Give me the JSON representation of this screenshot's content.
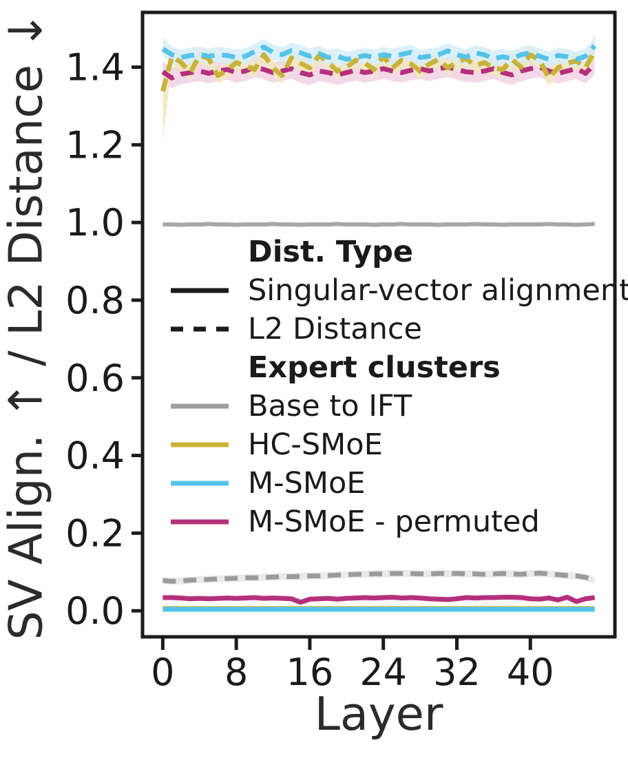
{
  "figure": {
    "background": "#ffffff",
    "frame_color": "#1c1c1c",
    "text_color": "#1a1a1a"
  },
  "axes": {
    "x_label": "Layer",
    "y_label": "SV Align. ↑ / L2 Distance ↓",
    "x_tick_labels": [
      "0",
      "8",
      "16",
      "24",
      "32",
      "40"
    ],
    "y_tick_labels": [
      "0.0",
      "0.2",
      "0.4",
      "0.6",
      "0.8",
      "1.0",
      "1.2",
      "1.4"
    ]
  },
  "legend": {
    "sections": [
      {
        "title": "Dist. Type",
        "items": [
          {
            "label": "Singular-vector alignment",
            "color": "#1a1a1a",
            "dash": null
          },
          {
            "label": "L2 Distance",
            "color": "#1a1a1a",
            "dash": "18 15"
          }
        ]
      },
      {
        "title": "Expert clusters",
        "items": [
          {
            "label": "Base to IFT",
            "color": "#9e9e9e",
            "dash": null
          },
          {
            "label": "HC-SMoE",
            "color": "#c9b23c",
            "dash": null
          },
          {
            "label": "M-SMoE",
            "color": "#55c3e8",
            "dash": null
          },
          {
            "label": "M-SMoE - permuted",
            "color": "#b5307c",
            "dash": null
          }
        ]
      }
    ]
  },
  "chart_data": {
    "type": "line",
    "title": "",
    "xlabel": "Layer",
    "ylabel": "SV Align. ↑ / L2 Distance ↓",
    "xlim": [
      -2.2,
      49.2
    ],
    "ylim": [
      -0.067,
      1.541
    ],
    "x_ticks": [
      0,
      8,
      16,
      24,
      32,
      40
    ],
    "y_ticks": [
      0.0,
      0.2,
      0.4,
      0.6,
      0.8,
      1.0,
      1.2,
      1.4
    ],
    "grid": false,
    "legend_position": "center-left inside plot",
    "x": [
      0,
      1,
      2,
      3,
      4,
      5,
      6,
      7,
      8,
      9,
      10,
      11,
      12,
      13,
      14,
      15,
      16,
      17,
      18,
      19,
      20,
      21,
      22,
      23,
      24,
      25,
      26,
      27,
      28,
      29,
      30,
      31,
      32,
      33,
      34,
      35,
      36,
      37,
      38,
      39,
      40,
      41,
      42,
      43,
      44,
      45,
      46,
      47
    ],
    "series": [
      {
        "name": "Base to IFT — Singular-vector alignment",
        "cluster": "Base to IFT",
        "dist_type": "Singular-vector alignment",
        "style": "solid",
        "color": "#a7a7a7",
        "width": 6,
        "band": 0,
        "values": [
          0.995,
          0.995,
          0.994,
          0.995,
          0.995,
          0.996,
          0.995,
          0.995,
          0.994,
          0.995,
          0.995,
          0.995,
          0.996,
          0.995,
          0.995,
          0.994,
          0.995,
          0.995,
          0.995,
          0.996,
          0.995,
          0.995,
          0.995,
          0.994,
          0.995,
          0.995,
          0.996,
          0.995,
          0.995,
          0.995,
          0.994,
          0.995,
          0.995,
          0.995,
          0.996,
          0.995,
          0.995,
          0.994,
          0.995,
          0.995,
          0.995,
          0.995,
          0.996,
          0.995,
          0.995,
          0.994,
          0.995,
          0.996
        ]
      },
      {
        "name": "Base to IFT — L2 Distance",
        "cluster": "Base to IFT",
        "dist_type": "L2 Distance",
        "style": "dashed",
        "color": "#9b9b9b",
        "width": 7,
        "band": 0.009,
        "band_color": "#e6e6e6",
        "values": [
          0.078,
          0.076,
          0.077,
          0.079,
          0.08,
          0.081,
          0.082,
          0.083,
          0.084,
          0.085,
          0.085,
          0.086,
          0.087,
          0.088,
          0.088,
          0.089,
          0.09,
          0.09,
          0.091,
          0.092,
          0.093,
          0.094,
          0.094,
          0.095,
          0.095,
          0.096,
          0.096,
          0.096,
          0.095,
          0.095,
          0.096,
          0.096,
          0.096,
          0.095,
          0.095,
          0.094,
          0.095,
          0.096,
          0.095,
          0.094,
          0.096,
          0.097,
          0.095,
          0.093,
          0.091,
          0.09,
          0.086,
          0.079
        ]
      },
      {
        "name": "HC-SMoE — Singular-vector alignment",
        "cluster": "HC-SMoE",
        "dist_type": "Singular-vector alignment",
        "style": "solid",
        "color": "#c9b23c",
        "width": 7,
        "band": 0,
        "values": [
          0.006,
          0.006,
          0.006,
          0.006,
          0.006,
          0.006,
          0.006,
          0.006,
          0.006,
          0.006,
          0.006,
          0.006,
          0.006,
          0.006,
          0.006,
          0.006,
          0.006,
          0.006,
          0.006,
          0.006,
          0.006,
          0.006,
          0.006,
          0.006,
          0.006,
          0.006,
          0.006,
          0.006,
          0.006,
          0.006,
          0.006,
          0.006,
          0.006,
          0.006,
          0.006,
          0.006,
          0.006,
          0.006,
          0.006,
          0.006,
          0.006,
          0.006,
          0.006,
          0.006,
          0.006,
          0.006,
          0.006,
          0.006
        ]
      },
      {
        "name": "M-SMoE — Singular-vector alignment",
        "cluster": "M-SMoE",
        "dist_type": "Singular-vector alignment",
        "style": "solid",
        "color": "#55c3e8",
        "width": 7,
        "band": 0,
        "values": [
          0.004,
          0.004,
          0.004,
          0.004,
          0.004,
          0.004,
          0.004,
          0.004,
          0.004,
          0.004,
          0.004,
          0.004,
          0.004,
          0.004,
          0.004,
          0.004,
          0.004,
          0.004,
          0.004,
          0.004,
          0.004,
          0.004,
          0.004,
          0.004,
          0.004,
          0.004,
          0.004,
          0.004,
          0.004,
          0.004,
          0.004,
          0.004,
          0.004,
          0.004,
          0.004,
          0.004,
          0.004,
          0.004,
          0.004,
          0.004,
          0.004,
          0.004,
          0.004,
          0.004,
          0.004,
          0.004,
          0.004,
          0.004
        ]
      },
      {
        "name": "M-SMoE - permuted — Singular-vector alignment",
        "cluster": "M-SMoE - permuted",
        "dist_type": "Singular-vector alignment",
        "style": "solid",
        "color": "#b5307c",
        "width": 7,
        "band": 0.006,
        "band_color": "#f1d2e4",
        "values": [
          0.034,
          0.034,
          0.033,
          0.031,
          0.032,
          0.031,
          0.032,
          0.033,
          0.032,
          0.033,
          0.034,
          0.032,
          0.033,
          0.032,
          0.031,
          0.022,
          0.03,
          0.031,
          0.032,
          0.03,
          0.032,
          0.033,
          0.034,
          0.033,
          0.034,
          0.035,
          0.033,
          0.034,
          0.033,
          0.031,
          0.03,
          0.029,
          0.031,
          0.034,
          0.033,
          0.034,
          0.034,
          0.035,
          0.035,
          0.034,
          0.031,
          0.03,
          0.033,
          0.028,
          0.035,
          0.024,
          0.031,
          0.034
        ]
      },
      {
        "name": "M-SMoE - permuted — L2 Distance",
        "cluster": "M-SMoE - permuted",
        "dist_type": "L2 Distance",
        "style": "dashed",
        "color": "#b5307c",
        "width": 7,
        "band": 0.026,
        "band_color": "#f1d2e4",
        "values": [
          1.388,
          1.372,
          1.382,
          1.386,
          1.39,
          1.384,
          1.39,
          1.394,
          1.386,
          1.39,
          1.4,
          1.394,
          1.386,
          1.39,
          1.396,
          1.386,
          1.38,
          1.39,
          1.386,
          1.38,
          1.386,
          1.392,
          1.386,
          1.39,
          1.396,
          1.39,
          1.386,
          1.392,
          1.396,
          1.39,
          1.396,
          1.4,
          1.394,
          1.388,
          1.386,
          1.39,
          1.396,
          1.386,
          1.38,
          1.39,
          1.396,
          1.4,
          1.39,
          1.384,
          1.39,
          1.396,
          1.384,
          1.408
        ]
      },
      {
        "name": "HC-SMoE — L2 Distance",
        "cluster": "HC-SMoE",
        "dist_type": "L2 Distance",
        "style": "dashed",
        "color": "#c9b23c",
        "width": 7,
        "band": 0.02,
        "band_color": "#f1e8bd",
        "first_low": 0.125,
        "last_high": 0.045,
        "values": [
          1.338,
          1.428,
          1.412,
          1.386,
          1.43,
          1.422,
          1.378,
          1.392,
          1.412,
          1.402,
          1.394,
          1.432,
          1.398,
          1.378,
          1.424,
          1.41,
          1.398,
          1.43,
          1.412,
          1.39,
          1.4,
          1.418,
          1.41,
          1.394,
          1.428,
          1.398,
          1.418,
          1.408,
          1.39,
          1.408,
          1.42,
          1.398,
          1.412,
          1.422,
          1.404,
          1.412,
          1.398,
          1.394,
          1.42,
          1.4,
          1.432,
          1.418,
          1.372,
          1.398,
          1.41,
          1.416,
          1.398,
          1.442
        ]
      },
      {
        "name": "M-SMoE — L2 Distance",
        "cluster": "M-SMoE",
        "dist_type": "L2 Distance",
        "style": "dashed",
        "color": "#55c3e8",
        "width": 7,
        "band": 0.02,
        "band_color": "#d6edf8",
        "first_high": 0.03,
        "values": [
          1.447,
          1.432,
          1.425,
          1.43,
          1.433,
          1.428,
          1.432,
          1.43,
          1.425,
          1.428,
          1.44,
          1.452,
          1.438,
          1.432,
          1.443,
          1.437,
          1.428,
          1.435,
          1.425,
          1.428,
          1.42,
          1.425,
          1.43,
          1.425,
          1.432,
          1.428,
          1.433,
          1.438,
          1.425,
          1.428,
          1.432,
          1.442,
          1.432,
          1.426,
          1.437,
          1.432,
          1.422,
          1.427,
          1.422,
          1.432,
          1.437,
          1.428,
          1.42,
          1.43,
          1.427,
          1.42,
          1.428,
          1.455
        ]
      }
    ]
  }
}
